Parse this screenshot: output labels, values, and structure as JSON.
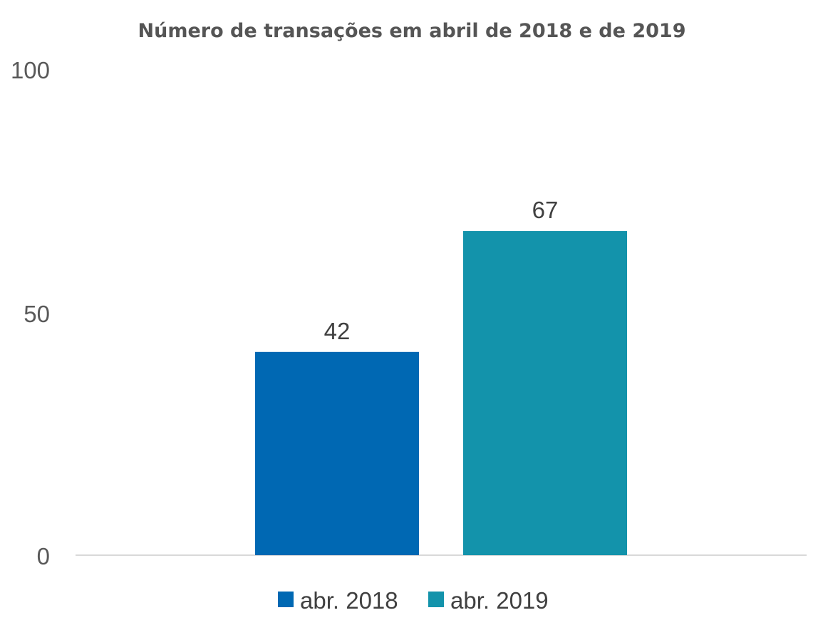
{
  "chart_data": {
    "type": "bar",
    "title": "Número de transações em abril de 2018 e de 2019",
    "xlabel": "",
    "ylabel": "",
    "ylim": [
      0,
      100
    ],
    "yticks": [
      "0",
      "50",
      "100"
    ],
    "grid": false,
    "legend_position": "bottom",
    "series": [
      {
        "name": "abr. 2018",
        "value": 42,
        "label": "42",
        "color": "#0068B3"
      },
      {
        "name": "abr. 2019",
        "value": 67,
        "label": "67",
        "color": "#1393AB"
      }
    ]
  }
}
